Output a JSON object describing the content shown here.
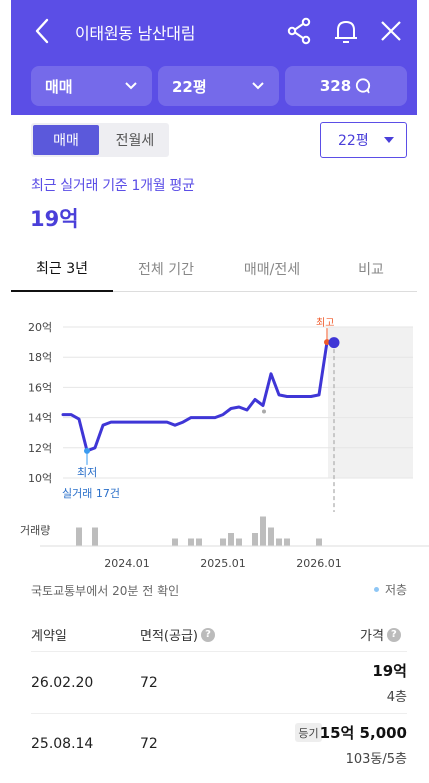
{
  "header": {
    "title": "이태원동 남산대림",
    "filter_type": "매매",
    "filter_size": "22평",
    "listing_count": "328"
  },
  "segment": {
    "selected": "매매",
    "other": "전월세"
  },
  "size_select": "22평",
  "summary": {
    "label": "최근 실거래 기준 1개월 평균",
    "value": "19억"
  },
  "tabs": [
    "최근 3년",
    "전체 기간",
    "매매/전세",
    "비교"
  ],
  "chart_data": {
    "type": "line",
    "y_ticks": [
      "20억",
      "18억",
      "16억",
      "14억",
      "12억",
      "10억"
    ],
    "ylim": [
      10,
      20
    ],
    "x_ticks": [
      "2024.01",
      "2025.01",
      "2026.01"
    ],
    "series": [
      {
        "values": [
          [
            "2023.05",
            14.2
          ],
          [
            "2023.06",
            14.2
          ],
          [
            "2023.07",
            13.9
          ],
          [
            "2023.08",
            11.8
          ],
          [
            "2023.09",
            12.0
          ],
          [
            "2023.10",
            13.5
          ],
          [
            "2023.11",
            13.7
          ],
          [
            "2023.12",
            13.7
          ],
          [
            "2024.02",
            13.7
          ],
          [
            "2024.04",
            13.7
          ],
          [
            "2024.06",
            13.7
          ],
          [
            "2024.07",
            13.5
          ],
          [
            "2024.08",
            13.7
          ],
          [
            "2024.09",
            14.0
          ],
          [
            "2024.10",
            14.0
          ],
          [
            "2024.12",
            14.0
          ],
          [
            "2025.01",
            14.2
          ],
          [
            "2025.02",
            14.6
          ],
          [
            "2025.03",
            14.7
          ],
          [
            "2025.04",
            14.5
          ],
          [
            "2025.05",
            15.2
          ],
          [
            "2025.06",
            14.8
          ],
          [
            "2025.07",
            16.9
          ],
          [
            "2025.08",
            15.5
          ],
          [
            "2025.09",
            15.4
          ],
          [
            "2025.12",
            15.4
          ],
          [
            "2026.01",
            15.5
          ],
          [
            "2026.02",
            19.0
          ]
        ]
      }
    ],
    "volume": [
      [
        "2023.07",
        3
      ],
      [
        "2023.09",
        3
      ],
      [
        "2024.07",
        1
      ],
      [
        "2024.09",
        1
      ],
      [
        "2024.10",
        1
      ],
      [
        "2025.01",
        1
      ],
      [
        "2025.02",
        2
      ],
      [
        "2025.03",
        1
      ],
      [
        "2025.05",
        2
      ],
      [
        "2025.06",
        5
      ],
      [
        "2025.07",
        3
      ],
      [
        "2025.08",
        1
      ],
      [
        "2025.09",
        1
      ],
      [
        "2026.01",
        1
      ]
    ],
    "label_high": "최고",
    "label_low": "최저",
    "low_caption": "실거래 17건",
    "volume_label": "거래량",
    "colors": {
      "line": "#3f36d6",
      "high": "#f05a2a",
      "low": "#3a9bf0",
      "bars": "#bdbdbd"
    }
  },
  "source_note": "국토교통부에서 20분 전 확인",
  "legend_low": "저층",
  "table": {
    "headers": {
      "date": "계약일",
      "area": "면적(공급)",
      "price": "가격"
    },
    "rows": [
      {
        "date": "26.02.20",
        "area": "72",
        "price": "19억",
        "floor": "4층",
        "badge": ""
      },
      {
        "date": "25.08.14",
        "area": "72",
        "price": "15억 5,000",
        "floor": "103동/5층",
        "badge": "등기"
      }
    ]
  }
}
